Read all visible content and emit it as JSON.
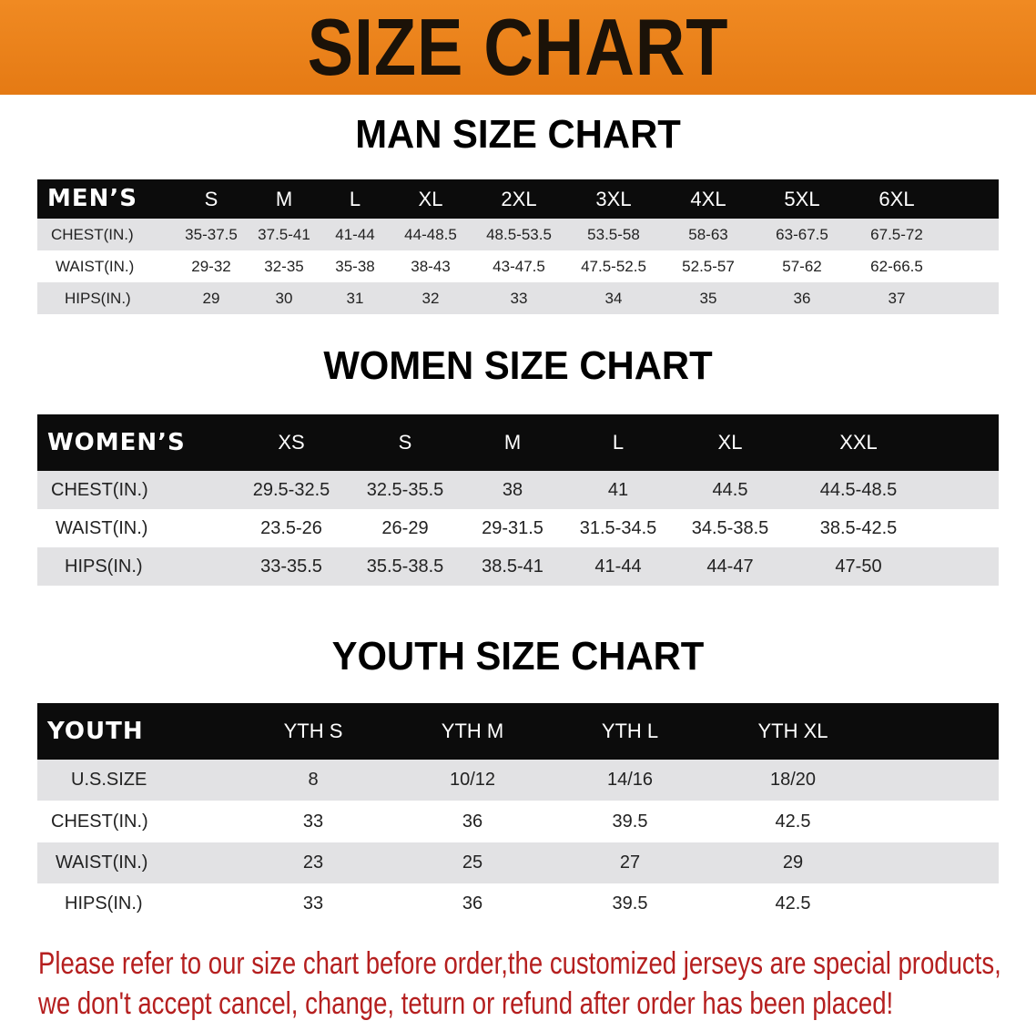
{
  "banner": {
    "title": "SIZE CHART",
    "color": "#e8801a"
  },
  "men": {
    "title": "MAN SIZE CHART",
    "header": [
      "MEN’S",
      "S",
      "M",
      "L",
      "XL",
      "2XL",
      "3XL",
      "4XL",
      "5XL",
      "6XL"
    ],
    "rows": [
      [
        "CHEST(IN.)",
        "35-37.5",
        "37.5-41",
        "41-44",
        "44-48.5",
        "48.5-53.5",
        "53.5-58",
        "58-63",
        "63-67.5",
        "67.5-72"
      ],
      [
        "WAIST(IN.)",
        "29-32",
        "32-35",
        "35-38",
        "38-43",
        "43-47.5",
        "47.5-52.5",
        "52.5-57",
        "57-62",
        "62-66.5"
      ],
      [
        "HIPS(IN.)",
        "29",
        "30",
        "31",
        "32",
        "33",
        "34",
        "35",
        "36",
        "37"
      ]
    ]
  },
  "women": {
    "title": "WOMEN SIZE CHART",
    "header": [
      "WOMEN’S",
      "XS",
      "S",
      "M",
      "L",
      "XL",
      "XXL"
    ],
    "rows": [
      [
        "CHEST(IN.)",
        "29.5-32.5",
        "32.5-35.5",
        "38",
        "41",
        "44.5",
        "44.5-48.5"
      ],
      [
        "WAIST(IN.)",
        "23.5-26",
        "26-29",
        "29-31.5",
        "31.5-34.5",
        "34.5-38.5",
        "38.5-42.5"
      ],
      [
        "HIPS(IN.)",
        "33-35.5",
        "35.5-38.5",
        "38.5-41",
        "41-44",
        "44-47",
        "47-50"
      ]
    ]
  },
  "youth": {
    "title": "YOUTH SIZE CHART",
    "header": [
      "YOUTH",
      "YTH S",
      "YTH M",
      "YTH L",
      "YTH XL"
    ],
    "rows": [
      [
        "U.S.SIZE",
        "8",
        "10/12",
        "14/16",
        "18/20"
      ],
      [
        "CHEST(IN.)",
        "33",
        "36",
        "39.5",
        "42.5"
      ],
      [
        "WAIST(IN.)",
        "23",
        "25",
        "27",
        "29"
      ],
      [
        "HIPS(IN.)",
        "33",
        "36",
        "39.5",
        "42.5"
      ]
    ]
  },
  "notice": {
    "line1": "Please refer to our size chart before order,the customized jerseys are special products,",
    "line2": "we don't accept cancel, change, teturn or refund after order has been placed!",
    "color": "#b51f1f"
  }
}
